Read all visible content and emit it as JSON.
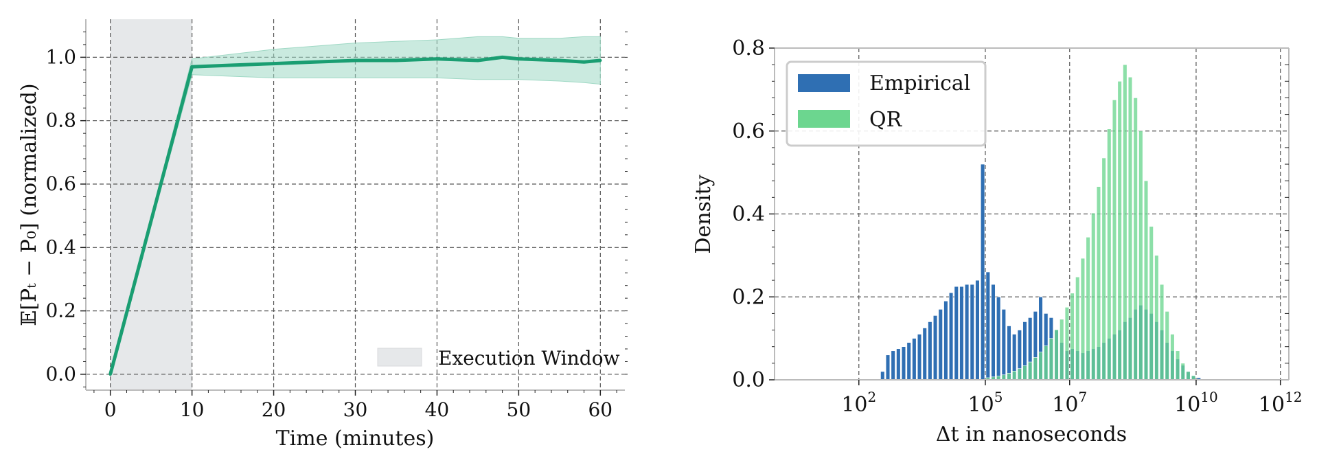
{
  "chart_data": [
    {
      "type": "line",
      "xlabel": "Time (minutes)",
      "ylabel": "𝔼[Pₜ − P₀] (normalized)",
      "xlim": [
        -3,
        63
      ],
      "ylim": [
        -0.05,
        1.12
      ],
      "xticks": [
        0,
        10,
        20,
        30,
        40,
        50,
        60
      ],
      "yticks": [
        0.0,
        0.2,
        0.4,
        0.6,
        0.8,
        1.0
      ],
      "xtick_labels": [
        "0",
        "10",
        "20",
        "30",
        "40",
        "50",
        "60"
      ],
      "ytick_labels": [
        "0.0",
        "0.2",
        "0.4",
        "0.6",
        "0.8",
        "1.0"
      ],
      "grid": true,
      "legend_position": "bottom-right",
      "shaded_region": {
        "label": "Execution Window",
        "x": [
          0,
          10
        ],
        "color": "#e6e8ea"
      },
      "series": [
        {
          "color": "#1a9e72",
          "band_color": "#9ed8c4",
          "x": [
            0,
            10,
            15,
            20,
            25,
            30,
            35,
            40,
            45,
            48,
            50,
            55,
            58,
            60
          ],
          "y": [
            0.0,
            0.97,
            0.975,
            0.98,
            0.985,
            0.99,
            0.99,
            0.995,
            0.99,
            1.0,
            0.995,
            0.99,
            0.985,
            0.99
          ],
          "band_upper": [
            0.0,
            0.995,
            1.01,
            1.025,
            1.035,
            1.045,
            1.05,
            1.055,
            1.065,
            1.065,
            1.06,
            1.06,
            1.065,
            1.065
          ],
          "band_lower": [
            0.0,
            0.945,
            0.94,
            0.935,
            0.935,
            0.935,
            0.935,
            0.935,
            0.93,
            0.93,
            0.93,
            0.925,
            0.92,
            0.915
          ]
        }
      ]
    },
    {
      "type": "bar",
      "xlabel": "Δt in nanoseconds",
      "ylabel": "Density",
      "x_scale": "log10",
      "xlim_log10": [
        0,
        12.2
      ],
      "ylim": [
        0,
        0.8
      ],
      "xticks_log10": [
        2,
        5,
        7,
        10,
        12
      ],
      "xtick_labels": [
        {
          "base": "10",
          "exp": "2"
        },
        {
          "base": "10",
          "exp": "5"
        },
        {
          "base": "10",
          "exp": "7"
        },
        {
          "base": "10",
          "exp": "10"
        },
        {
          "base": "10",
          "exp": "12"
        }
      ],
      "yticks": [
        0.0,
        0.2,
        0.4,
        0.6,
        0.8
      ],
      "ytick_labels": [
        "0.0",
        "0.2",
        "0.4",
        "0.6",
        "0.8"
      ],
      "grid": true,
      "legend_position": "top-left",
      "bin_width_log10": 0.125,
      "series": [
        {
          "name": "Empirical",
          "color": "#2f6fb3",
          "bin_start_log10": 2.5,
          "values": [
            0.02,
            0.06,
            0.07,
            0.075,
            0.08,
            0.09,
            0.1,
            0.11,
            0.125,
            0.14,
            0.155,
            0.17,
            0.19,
            0.21,
            0.225,
            0.225,
            0.23,
            0.23,
            0.24,
            0.52,
            0.26,
            0.23,
            0.2,
            0.17,
            0.13,
            0.11,
            0.12,
            0.14,
            0.15,
            0.165,
            0.2,
            0.16,
            0.15,
            0.12,
            0.09,
            0.07,
            0.075,
            0.07,
            0.065,
            0.07,
            0.075,
            0.08,
            0.09,
            0.1,
            0.11,
            0.12,
            0.14,
            0.15,
            0.17,
            0.18,
            0.17,
            0.16,
            0.14,
            0.12,
            0.09,
            0.07,
            0.05,
            0.035,
            0.02,
            0.01,
            0.005
          ]
        },
        {
          "name": "QR",
          "color": "#6cd68f",
          "bin_start_log10": 5.0,
          "values": [
            0.005,
            0.007,
            0.009,
            0.012,
            0.016,
            0.021,
            0.027,
            0.034,
            0.043,
            0.054,
            0.067,
            0.082,
            0.1,
            0.121,
            0.146,
            0.175,
            0.209,
            0.248,
            0.293,
            0.344,
            0.402,
            0.466,
            0.535,
            0.605,
            0.675,
            0.72,
            0.76,
            0.73,
            0.68,
            0.6,
            0.48,
            0.37,
            0.3,
            0.23,
            0.165,
            0.11,
            0.07,
            0.04,
            0.02,
            0.01
          ]
        }
      ]
    }
  ]
}
